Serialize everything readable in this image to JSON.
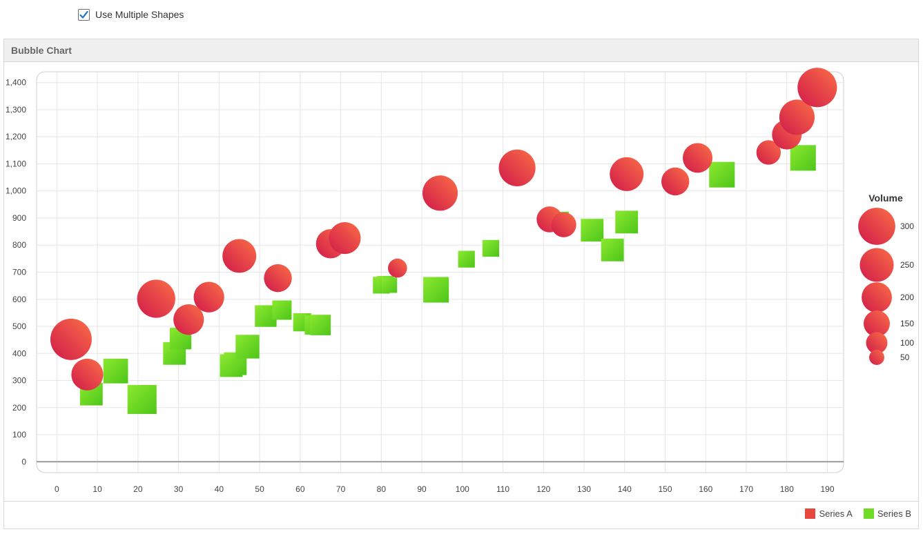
{
  "controls": {
    "use_multiple_shapes_label": "Use Multiple Shapes",
    "use_multiple_shapes_checked": true
  },
  "panel": {
    "title": "Bubble Chart"
  },
  "colors": {
    "series_a": "#e8473e",
    "series_a_dark": "#d21d45",
    "series_a_light": "#f86a48",
    "series_b": "#6fdc26",
    "series_b_dark": "#4fc51b",
    "series_b_light": "#8ae72e",
    "grid": "#e6e6e6",
    "axis_line": "#999999"
  },
  "chart_data": {
    "type": "scatter",
    "bubble": true,
    "xlim": [
      -5,
      194
    ],
    "ylim": [
      -40,
      1440
    ],
    "x_ticks": [
      0,
      10,
      20,
      30,
      40,
      50,
      60,
      70,
      80,
      90,
      100,
      110,
      120,
      130,
      140,
      150,
      160,
      170,
      180,
      190
    ],
    "x_tick_labels": [
      "0",
      "10",
      "20",
      "30",
      "40",
      "50",
      "60",
      "70",
      "80",
      "90",
      "100",
      "110",
      "120",
      "130",
      "140",
      "150",
      "160",
      "170",
      "180",
      "190"
    ],
    "y_ticks": [
      0,
      100,
      200,
      300,
      400,
      500,
      600,
      700,
      800,
      900,
      1000,
      1100,
      1200,
      1300,
      1400
    ],
    "y_tick_labels": [
      "0",
      "100",
      "200",
      "300",
      "400",
      "500",
      "600",
      "700",
      "800",
      "900",
      "1,000",
      "1,100",
      "1,200",
      "1,300",
      "1,400"
    ],
    "grid": true,
    "size_legend": {
      "title": "Volume",
      "entries": [
        {
          "value": 300,
          "label": "300"
        },
        {
          "value": 250,
          "label": "250"
        },
        {
          "value": 200,
          "label": "200"
        },
        {
          "value": 150,
          "label": "150"
        },
        {
          "value": 100,
          "label": "100"
        },
        {
          "value": 50,
          "label": "50"
        }
      ]
    },
    "legend_position": "bottom-right",
    "series": [
      {
        "name": "Series A",
        "shape": "circle",
        "points": [
          {
            "x": 3.5,
            "y": 452,
            "size": 330
          },
          {
            "x": 7.5,
            "y": 322,
            "size": 195
          },
          {
            "x": 24.5,
            "y": 602,
            "size": 280
          },
          {
            "x": 32.5,
            "y": 525,
            "size": 180
          },
          {
            "x": 37.5,
            "y": 608,
            "size": 180
          },
          {
            "x": 45,
            "y": 760,
            "size": 220
          },
          {
            "x": 54.5,
            "y": 678,
            "size": 150
          },
          {
            "x": 67.5,
            "y": 805,
            "size": 165
          },
          {
            "x": 71,
            "y": 826,
            "size": 195
          },
          {
            "x": 84,
            "y": 715,
            "size": 70
          },
          {
            "x": 94.5,
            "y": 992,
            "size": 240
          },
          {
            "x": 113.5,
            "y": 1085,
            "size": 260
          },
          {
            "x": 121.5,
            "y": 895,
            "size": 130
          },
          {
            "x": 125,
            "y": 875,
            "size": 120
          },
          {
            "x": 140.5,
            "y": 1062,
            "size": 220
          },
          {
            "x": 152.5,
            "y": 1035,
            "size": 150
          },
          {
            "x": 158,
            "y": 1122,
            "size": 170
          },
          {
            "x": 175.5,
            "y": 1142,
            "size": 115
          },
          {
            "x": 180,
            "y": 1208,
            "size": 170
          },
          {
            "x": 182.5,
            "y": 1272,
            "size": 240
          },
          {
            "x": 187.5,
            "y": 1382,
            "size": 300
          }
        ]
      },
      {
        "name": "Series B",
        "shape": "square",
        "points": [
          {
            "x": 8.5,
            "y": 250,
            "size": 110
          },
          {
            "x": 14.5,
            "y": 335,
            "size": 130
          },
          {
            "x": 21,
            "y": 230,
            "size": 180
          },
          {
            "x": 29,
            "y": 400,
            "size": 110
          },
          {
            "x": 30.5,
            "y": 455,
            "size": 100
          },
          {
            "x": 43,
            "y": 355,
            "size": 110
          },
          {
            "x": 44,
            "y": 362,
            "size": 110
          },
          {
            "x": 47,
            "y": 425,
            "size": 120
          },
          {
            "x": 51.5,
            "y": 538,
            "size": 100
          },
          {
            "x": 55.5,
            "y": 560,
            "size": 80
          },
          {
            "x": 60.5,
            "y": 515,
            "size": 70
          },
          {
            "x": 63.5,
            "y": 505,
            "size": 80
          },
          {
            "x": 65,
            "y": 505,
            "size": 90
          },
          {
            "x": 80,
            "y": 652,
            "size": 60
          },
          {
            "x": 81,
            "y": 655,
            "size": 60
          },
          {
            "x": 82,
            "y": 652,
            "size": 50
          },
          {
            "x": 93.5,
            "y": 635,
            "size": 140
          },
          {
            "x": 101,
            "y": 748,
            "size": 60
          },
          {
            "x": 107,
            "y": 788,
            "size": 60
          },
          {
            "x": 124,
            "y": 890,
            "size": 70
          },
          {
            "x": 132,
            "y": 855,
            "size": 110
          },
          {
            "x": 137,
            "y": 782,
            "size": 110
          },
          {
            "x": 140.5,
            "y": 885,
            "size": 110
          },
          {
            "x": 164,
            "y": 1060,
            "size": 140
          },
          {
            "x": 184,
            "y": 1122,
            "size": 140
          }
        ]
      }
    ]
  }
}
